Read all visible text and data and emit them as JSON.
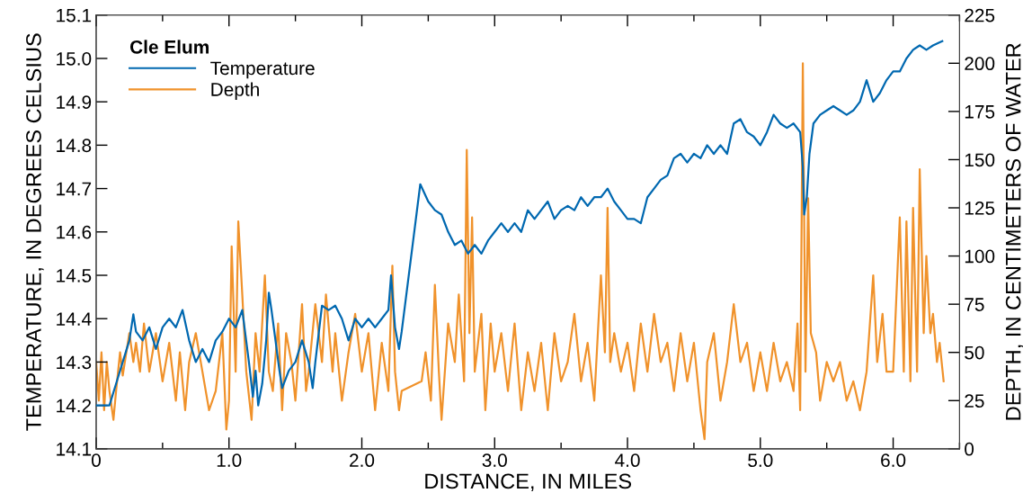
{
  "chart_data": {
    "type": "line",
    "xlabel": "DISTANCE, IN MILES",
    "ylabel": "TEMPERATURE, IN DEGREES CELSIUS",
    "y2label": "DEPTH, IN CENTIMETERS OF WATER",
    "legend_title": "Cle Elum",
    "legend": "top left",
    "grid": false,
    "line_style": "solid",
    "marker": "none",
    "xlim": [
      0,
      6.5
    ],
    "xticks": [
      {
        "value": 0,
        "label": "0"
      },
      {
        "value": 0.5,
        "label": null
      },
      {
        "value": 1,
        "label": "1.0"
      },
      {
        "value": 1.5,
        "label": null
      },
      {
        "value": 2,
        "label": "2.0"
      },
      {
        "value": 2.5,
        "label": null
      },
      {
        "value": 3,
        "label": "3.0"
      },
      {
        "value": 3.5,
        "label": null
      },
      {
        "value": 4,
        "label": "4.0"
      },
      {
        "value": 4.5,
        "label": null
      },
      {
        "value": 5,
        "label": "5.0"
      },
      {
        "value": 5.5,
        "label": null
      },
      {
        "value": 6,
        "label": "6.0"
      },
      {
        "value": 6.5,
        "label": null
      }
    ],
    "ylim": [
      14.1,
      15.1
    ],
    "yticks": [
      14.1,
      14.2,
      14.3,
      14.4,
      14.5,
      14.6,
      14.7,
      14.8,
      14.9,
      {
        "value": 15.0,
        "label": "15.0"
      },
      15.1
    ],
    "y2lim": [
      0,
      225
    ],
    "y2ticks": [
      0,
      25,
      50,
      75,
      100,
      125,
      150,
      175,
      200,
      225
    ],
    "series": [
      {
        "name": "Temperature",
        "color": "#0068b0",
        "axis": "y",
        "x": [
          0,
          0.1,
          0.15,
          0.2,
          0.25,
          0.28,
          0.3,
          0.35,
          0.4,
          0.45,
          0.5,
          0.55,
          0.6,
          0.65,
          0.7,
          0.75,
          0.8,
          0.85,
          0.9,
          0.95,
          1.0,
          1.05,
          1.1,
          1.15,
          1.18,
          1.2,
          1.22,
          1.25,
          1.28,
          1.3,
          1.32,
          1.35,
          1.38,
          1.4,
          1.45,
          1.5,
          1.55,
          1.6,
          1.63,
          1.65,
          1.7,
          1.75,
          1.8,
          1.85,
          1.9,
          1.95,
          2.0,
          2.05,
          2.1,
          2.15,
          2.2,
          2.22,
          2.25,
          2.28,
          2.3,
          2.44,
          2.5,
          2.55,
          2.6,
          2.65,
          2.7,
          2.75,
          2.8,
          2.85,
          2.9,
          2.95,
          3.0,
          3.05,
          3.1,
          3.15,
          3.2,
          3.25,
          3.3,
          3.35,
          3.4,
          3.45,
          3.5,
          3.55,
          3.6,
          3.65,
          3.7,
          3.75,
          3.8,
          3.85,
          3.9,
          3.95,
          4.0,
          4.05,
          4.1,
          4.15,
          4.2,
          4.25,
          4.3,
          4.35,
          4.4,
          4.45,
          4.5,
          4.55,
          4.6,
          4.65,
          4.7,
          4.75,
          4.8,
          4.85,
          4.9,
          4.95,
          5.0,
          5.05,
          5.1,
          5.15,
          5.2,
          5.25,
          5.3,
          5.32,
          5.33,
          5.35,
          5.37,
          5.4,
          5.45,
          5.5,
          5.55,
          5.6,
          5.65,
          5.7,
          5.75,
          5.8,
          5.85,
          5.9,
          5.95,
          6.0,
          6.05,
          6.1,
          6.15,
          6.2,
          6.25,
          6.3,
          6.37
        ],
        "values": [
          14.2,
          14.2,
          14.25,
          14.3,
          14.35,
          14.41,
          14.37,
          14.35,
          14.38,
          14.33,
          14.38,
          14.4,
          14.38,
          14.42,
          14.35,
          14.3,
          14.33,
          14.3,
          14.35,
          14.37,
          14.4,
          14.38,
          14.42,
          14.3,
          14.22,
          14.28,
          14.2,
          14.25,
          14.35,
          14.46,
          14.42,
          14.35,
          14.28,
          14.24,
          14.28,
          14.3,
          14.35,
          14.3,
          14.24,
          14.3,
          14.43,
          14.42,
          14.43,
          14.4,
          14.35,
          14.4,
          14.38,
          14.4,
          14.38,
          14.4,
          14.42,
          14.5,
          14.38,
          14.33,
          14.37,
          14.71,
          14.67,
          14.65,
          14.64,
          14.6,
          14.57,
          14.58,
          14.55,
          14.57,
          14.55,
          14.58,
          14.6,
          14.62,
          14.6,
          14.62,
          14.6,
          14.65,
          14.63,
          14.65,
          14.67,
          14.63,
          14.65,
          14.66,
          14.65,
          14.68,
          14.66,
          14.68,
          14.68,
          14.7,
          14.67,
          14.65,
          14.63,
          14.63,
          14.62,
          14.68,
          14.7,
          14.72,
          14.73,
          14.77,
          14.78,
          14.76,
          14.78,
          14.77,
          14.8,
          14.78,
          14.8,
          14.78,
          14.85,
          14.86,
          14.83,
          14.82,
          14.8,
          14.83,
          14.87,
          14.85,
          14.84,
          14.85,
          14.83,
          14.75,
          14.64,
          14.68,
          14.78,
          14.85,
          14.87,
          14.88,
          14.89,
          14.88,
          14.87,
          14.88,
          14.9,
          14.95,
          14.9,
          14.92,
          14.95,
          14.97,
          14.97,
          15.0,
          15.02,
          15.03,
          15.02,
          15.03,
          15.04
        ]
      },
      {
        "name": "Depth",
        "color": "#f0922b",
        "axis": "y2",
        "x": [
          0,
          0.02,
          0.04,
          0.06,
          0.08,
          0.1,
          0.13,
          0.15,
          0.18,
          0.2,
          0.25,
          0.28,
          0.3,
          0.33,
          0.36,
          0.4,
          0.45,
          0.5,
          0.55,
          0.6,
          0.63,
          0.67,
          0.7,
          0.75,
          0.8,
          0.85,
          0.9,
          0.95,
          0.98,
          1.0,
          1.02,
          1.05,
          1.07,
          1.1,
          1.13,
          1.17,
          1.2,
          1.23,
          1.27,
          1.3,
          1.33,
          1.37,
          1.4,
          1.43,
          1.47,
          1.5,
          1.55,
          1.58,
          1.6,
          1.65,
          1.7,
          1.73,
          1.78,
          1.8,
          1.85,
          1.9,
          1.95,
          2.0,
          2.05,
          2.1,
          2.15,
          2.2,
          2.23,
          2.25,
          2.28,
          2.3,
          2.45,
          2.48,
          2.52,
          2.55,
          2.58,
          2.6,
          2.65,
          2.7,
          2.73,
          2.77,
          2.79,
          2.81,
          2.83,
          2.85,
          2.9,
          2.93,
          2.97,
          3.0,
          3.05,
          3.1,
          3.15,
          3.2,
          3.25,
          3.3,
          3.35,
          3.4,
          3.45,
          3.5,
          3.55,
          3.6,
          3.65,
          3.7,
          3.75,
          3.8,
          3.83,
          3.85,
          3.87,
          3.9,
          3.95,
          4.0,
          4.05,
          4.1,
          4.15,
          4.2,
          4.25,
          4.3,
          4.35,
          4.4,
          4.45,
          4.5,
          4.55,
          4.58,
          4.6,
          4.65,
          4.7,
          4.75,
          4.8,
          4.85,
          4.9,
          4.95,
          5.0,
          5.05,
          5.1,
          5.15,
          5.2,
          5.25,
          5.28,
          5.3,
          5.32,
          5.34,
          5.36,
          5.38,
          5.42,
          5.45,
          5.5,
          5.55,
          5.6,
          5.65,
          5.7,
          5.75,
          5.8,
          5.85,
          5.88,
          5.92,
          5.95,
          6.0,
          6.05,
          6.08,
          6.1,
          6.13,
          6.15,
          6.18,
          6.2,
          6.23,
          6.25,
          6.28,
          6.3,
          6.33,
          6.35,
          6.38
        ],
        "values": [
          45,
          25,
          50,
          20,
          45,
          30,
          15,
          30,
          50,
          38,
          60,
          45,
          55,
          40,
          65,
          40,
          60,
          35,
          55,
          25,
          50,
          20,
          45,
          60,
          40,
          20,
          30,
          60,
          10,
          25,
          105,
          40,
          118,
          80,
          40,
          15,
          60,
          40,
          90,
          40,
          30,
          65,
          20,
          60,
          45,
          25,
          75,
          30,
          40,
          75,
          45,
          80,
          40,
          60,
          25,
          50,
          70,
          40,
          60,
          20,
          55,
          30,
          95,
          40,
          20,
          30,
          35,
          50,
          25,
          85,
          40,
          15,
          65,
          45,
          80,
          35,
          155,
          60,
          120,
          40,
          70,
          20,
          65,
          40,
          60,
          30,
          65,
          20,
          50,
          30,
          55,
          20,
          60,
          35,
          45,
          70,
          35,
          55,
          25,
          90,
          50,
          125,
          45,
          60,
          40,
          55,
          30,
          65,
          40,
          70,
          45,
          55,
          30,
          60,
          35,
          55,
          20,
          5,
          45,
          60,
          25,
          45,
          75,
          45,
          55,
          30,
          50,
          30,
          55,
          35,
          45,
          30,
          65,
          20,
          200,
          40,
          130,
          60,
          50,
          25,
          45,
          35,
          45,
          25,
          35,
          20,
          40,
          90,
          45,
          70,
          40,
          40,
          120,
          40,
          118,
          35,
          125,
          40,
          145,
          60,
          100,
          60,
          70,
          45,
          55,
          35
        ]
      }
    ]
  }
}
